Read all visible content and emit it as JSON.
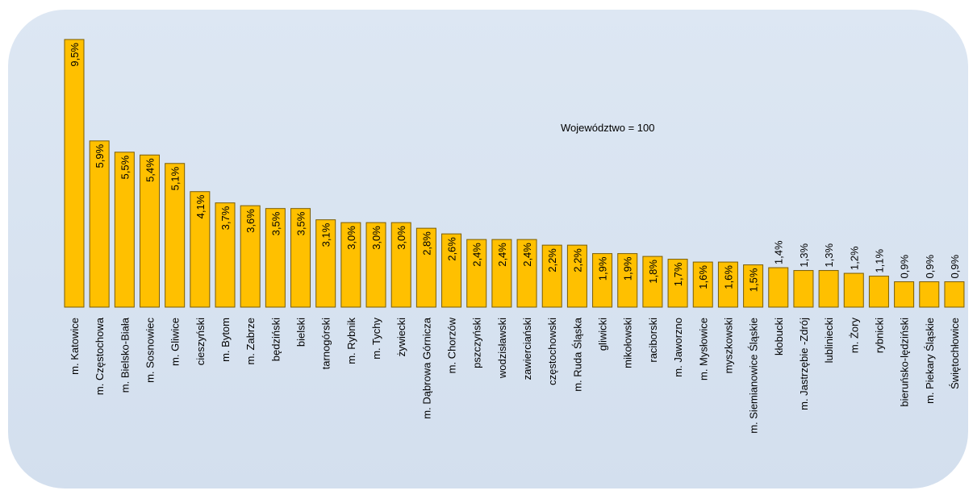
{
  "chart_data": {
    "type": "bar",
    "annotation": "Województwo = 100",
    "categories": [
      "m. Katowice",
      "m. Częstochowa",
      "m. Bielsko-Biała",
      "m. Sosnowiec",
      "m. Gliwice",
      "cieszyński",
      "m. Bytom",
      "m. Zabrze",
      "będziński",
      "bielski",
      "tarnogórski",
      "m. Rybnik",
      "m. Tychy",
      "żywiecki",
      "m. Dąbrowa Górnicza",
      "m. Chorzów",
      "pszczyński",
      "wodzisławski",
      "zawierciański",
      "częstochowski",
      "m. Ruda Śląska",
      "gliwicki",
      "mikołowski",
      "raciborski",
      "m. Jaworzno",
      "m. Mysłowice",
      "myszkowski",
      "m. Siemianowice Śląskie",
      "kłobucki",
      "m. Jastrzębie -Zdrój",
      "lubliniecki",
      "m. Żory",
      "rybnicki",
      "bieruńsko-lędziński",
      "m. Piekary Śląskie",
      "Świętochłowice"
    ],
    "values": [
      9.5,
      5.9,
      5.5,
      5.4,
      5.1,
      4.1,
      3.7,
      3.6,
      3.5,
      3.5,
      3.1,
      3.0,
      3.0,
      3.0,
      2.8,
      2.6,
      2.4,
      2.4,
      2.4,
      2.2,
      2.2,
      1.9,
      1.9,
      1.8,
      1.7,
      1.6,
      1.6,
      1.5,
      1.4,
      1.3,
      1.3,
      1.2,
      1.1,
      0.9,
      0.9,
      0.9
    ],
    "value_labels": [
      "9,5%",
      "5,9%",
      "5,5%",
      "5,4%",
      "5,1%",
      "4,1%",
      "3,7%",
      "3,6%",
      "3,5%",
      "3,5%",
      "3,1%",
      "3,0%",
      "3,0%",
      "3,0%",
      "2,8%",
      "2,6%",
      "2,4%",
      "2,4%",
      "2,4%",
      "2,2%",
      "2,2%",
      "1,9%",
      "1,9%",
      "1,8%",
      "1,7%",
      "1,6%",
      "1,6%",
      "1,5%",
      "1,4%",
      "1,3%",
      "1,3%",
      "1,2%",
      "1,1%",
      "0,9%",
      "0,9%",
      "0,9%"
    ],
    "color": "#ffc000",
    "ylim": [
      0,
      9.5
    ]
  }
}
